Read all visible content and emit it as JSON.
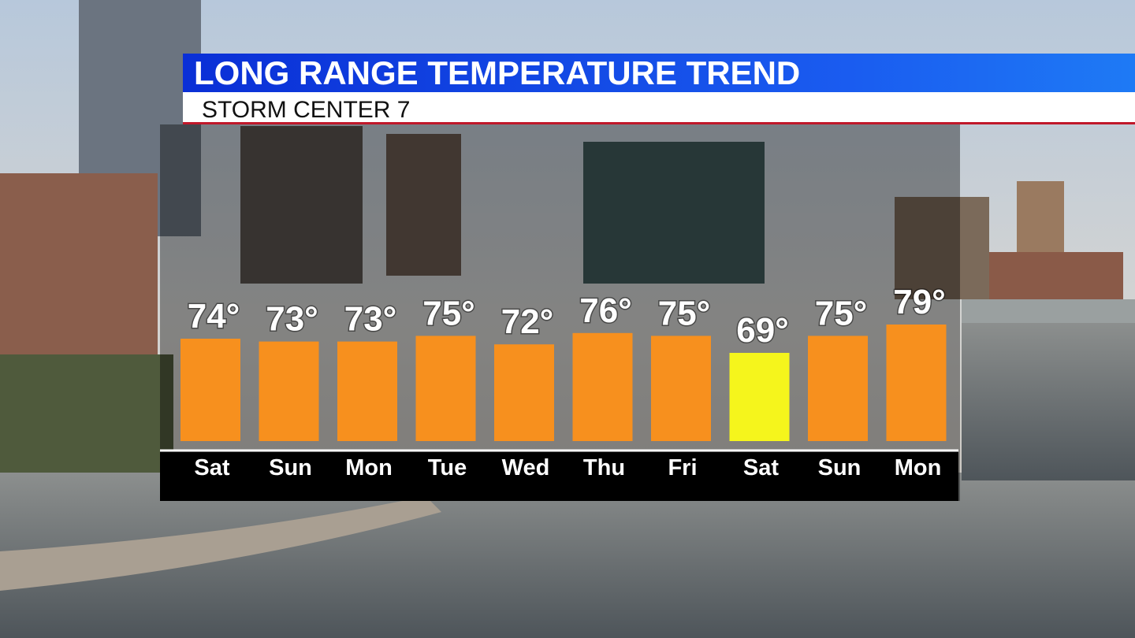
{
  "chart_data": {
    "type": "bar",
    "title": "LONG RANGE TEMPERATURE TREND",
    "subtitle": "STORM CENTER 7",
    "categories": [
      "Sat",
      "Sun",
      "Mon",
      "Tue",
      "Wed",
      "Thu",
      "Fri",
      "Sat",
      "Sun",
      "Mon"
    ],
    "values": [
      74,
      73,
      73,
      75,
      72,
      76,
      75,
      69,
      75,
      79
    ],
    "value_labels": [
      "74°",
      "73°",
      "73°",
      "75°",
      "72°",
      "76°",
      "75°",
      "69°",
      "75°",
      "79°"
    ],
    "colors": [
      "#f7901e",
      "#f7901e",
      "#f7901e",
      "#f7901e",
      "#f7901e",
      "#f7901e",
      "#f7901e",
      "#f5f51c",
      "#f7901e",
      "#f7901e"
    ]
  }
}
